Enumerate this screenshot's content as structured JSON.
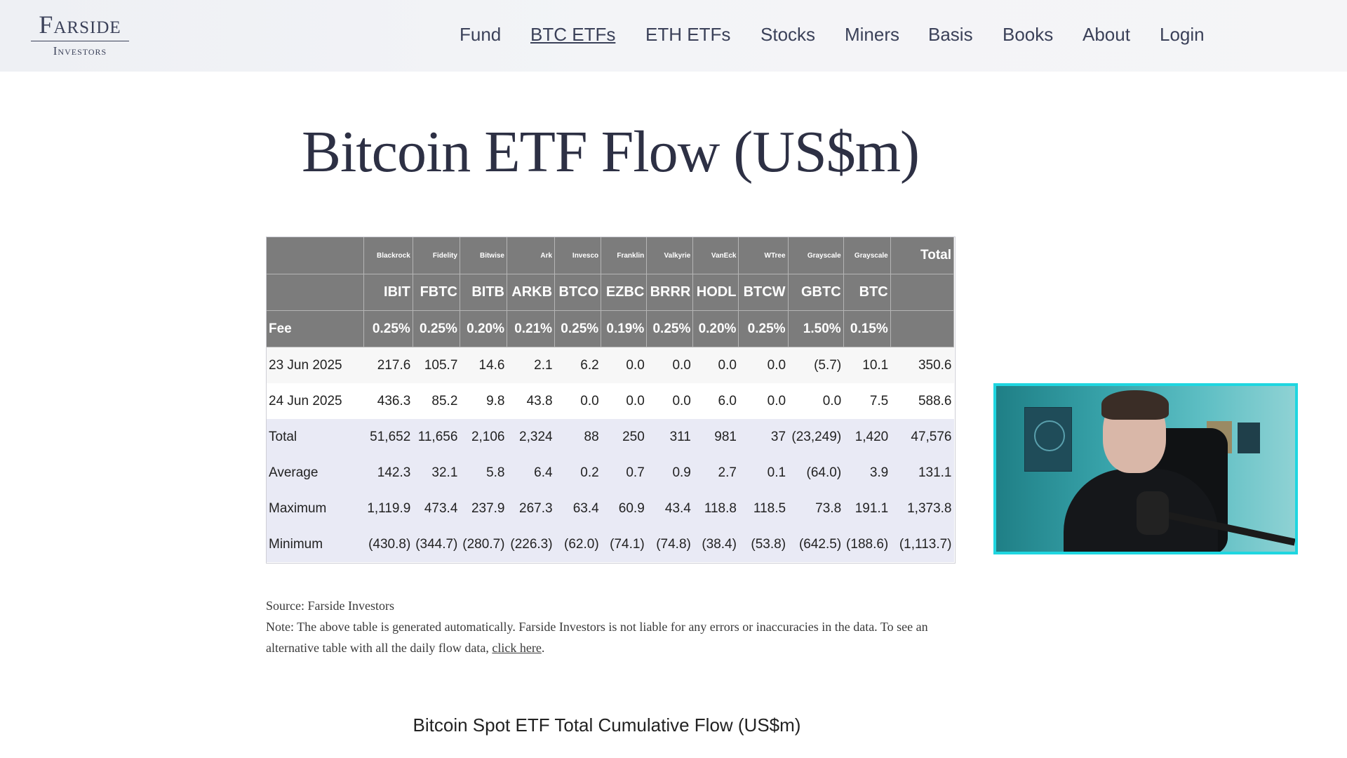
{
  "header": {
    "logo_main": "Farside",
    "logo_sub": "Investors",
    "nav": [
      "Fund",
      "BTC ETFs",
      "ETH ETFs",
      "Stocks",
      "Miners",
      "Basis",
      "Books",
      "About",
      "Login"
    ],
    "active": "BTC ETFs"
  },
  "page_title": "Bitcoin ETF Flow (US$m)",
  "table": {
    "issuers": [
      "",
      "Blackrock",
      "Fidelity",
      "Bitwise",
      "Ark",
      "Invesco",
      "Franklin",
      "Valkyrie",
      "VanEck",
      "WTree",
      "Grayscale",
      "Grayscale",
      "Total"
    ],
    "tickers": [
      "",
      "IBIT",
      "FBTC",
      "BITB",
      "ARKB",
      "BTCO",
      "EZBC",
      "BRRR",
      "HODL",
      "BTCW",
      "GBTC",
      "BTC",
      ""
    ],
    "fees": [
      "Fee",
      "0.25%",
      "0.25%",
      "0.20%",
      "0.21%",
      "0.25%",
      "0.19%",
      "0.25%",
      "0.20%",
      "0.25%",
      "1.50%",
      "0.15%",
      ""
    ],
    "rows": [
      {
        "kind": "day",
        "cells": [
          "23 Jun 2025",
          "217.6",
          "105.7",
          "14.6",
          "2.1",
          "6.2",
          "0.0",
          "0.0",
          "0.0",
          "0.0",
          "(5.7)",
          "10.1",
          "350.6"
        ]
      },
      {
        "kind": "day alt",
        "cells": [
          "24 Jun 2025",
          "436.3",
          "85.2",
          "9.8",
          "43.8",
          "0.0",
          "0.0",
          "0.0",
          "6.0",
          "0.0",
          "0.0",
          "7.5",
          "588.6"
        ]
      },
      {
        "kind": "stat",
        "cells": [
          "Total",
          "51,652",
          "11,656",
          "2,106",
          "2,324",
          "88",
          "250",
          "311",
          "981",
          "37",
          "(23,249)",
          "1,420",
          "47,576"
        ]
      },
      {
        "kind": "stat",
        "cells": [
          "Average",
          "142.3",
          "32.1",
          "5.8",
          "6.4",
          "0.2",
          "0.7",
          "0.9",
          "2.7",
          "0.1",
          "(64.0)",
          "3.9",
          "131.1"
        ]
      },
      {
        "kind": "stat",
        "cells": [
          "Maximum",
          "1,119.9",
          "473.4",
          "237.9",
          "267.3",
          "63.4",
          "60.9",
          "43.4",
          "118.8",
          "118.5",
          "73.8",
          "191.1",
          "1,373.8"
        ]
      },
      {
        "kind": "stat",
        "cells": [
          "Minimum",
          "(430.8)",
          "(344.7)",
          "(280.7)",
          "(226.3)",
          "(62.0)",
          "(74.1)",
          "(74.8)",
          "(38.4)",
          "(53.8)",
          "(642.5)",
          "(188.6)",
          "(1,113.7)"
        ]
      }
    ]
  },
  "notes": {
    "source": "Source: Farside Investors",
    "note": "Note: The above table is generated automatically. Farside Investors is not liable for any errors or inaccuracies in the data. To see an alternative table with all the daily flow data, ",
    "link": "click here",
    "end": "."
  },
  "chart_title": "Bitcoin Spot ETF Total Cumulative Flow (US$m)",
  "colors": {
    "brand": "#3b4159",
    "header_cell": "#7c7c7c",
    "stat_row": "#e9eaf5",
    "negative": "#d0243e",
    "webcam_border": "#1fd6e0"
  }
}
